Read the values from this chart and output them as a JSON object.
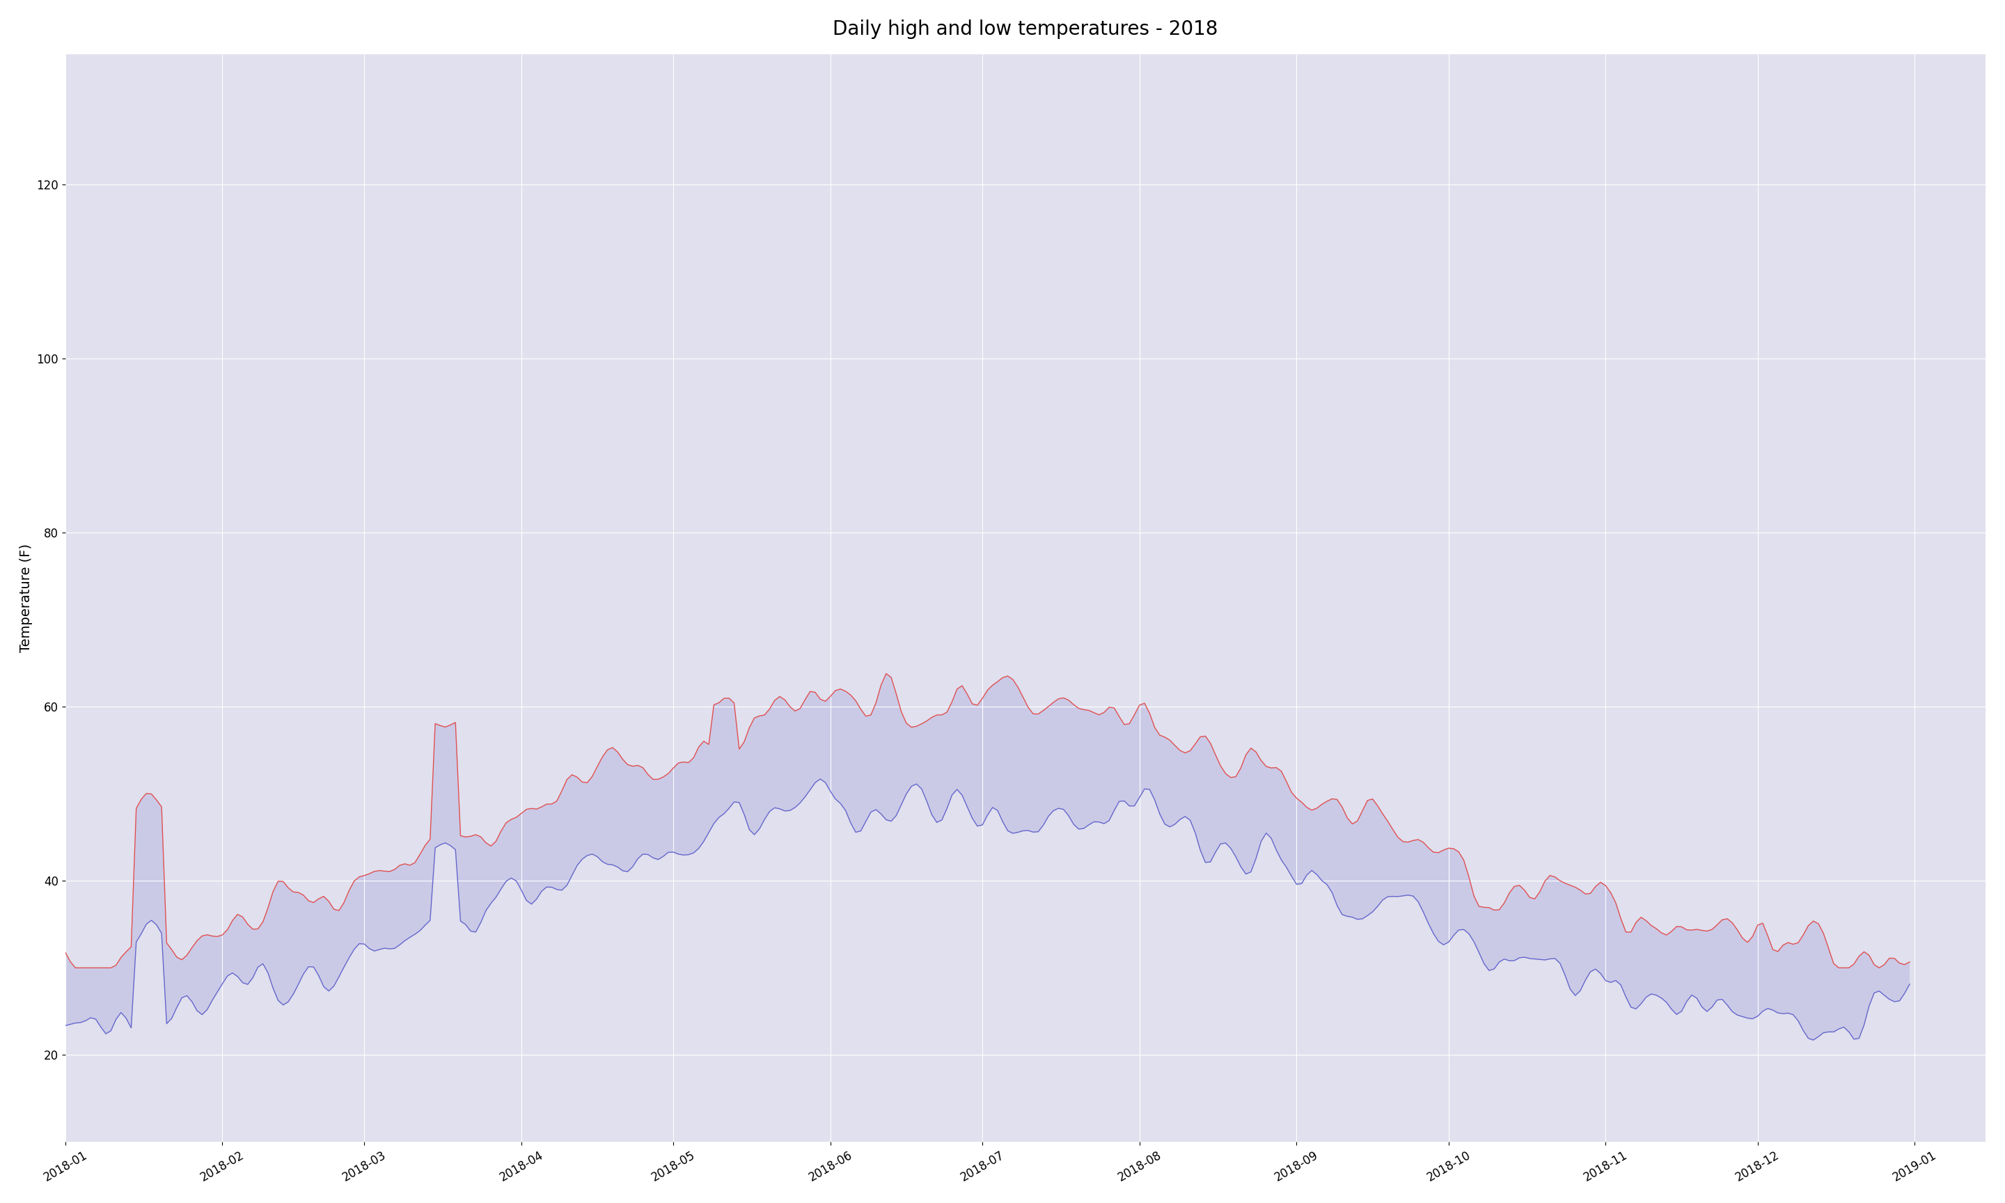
{
  "title": "Daily high and low temperatures - 2018",
  "ylabel": "Temperature (F)",
  "background_color": "#e8e8f0",
  "axes_bg_color": "#e0e0ee",
  "high_color": "#e05050",
  "low_color": "#6666cc",
  "fill_color": "#aaaadd",
  "fill_alpha": 0.4,
  "line_width": 1.0,
  "title_fontsize": 20,
  "label_fontsize": 14,
  "tick_fontsize": 12,
  "ylim": [
    10,
    135
  ],
  "yticks": [
    20,
    40,
    60,
    80,
    100,
    120
  ]
}
